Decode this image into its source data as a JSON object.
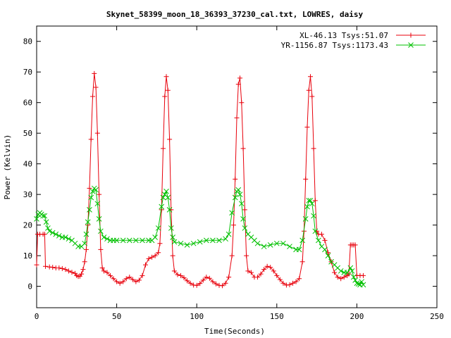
{
  "chart_data": {
    "type": "line",
    "title": "Skynet_58399_moon_18_36393_37230_cal.txt, LOWRES, daisy",
    "xlabel": "Time(Seconds)",
    "ylabel": "Power (Kelvin)",
    "xlim": [
      0,
      250
    ],
    "ylim": [
      -7,
      85
    ],
    "x_ticks": [
      0,
      50,
      100,
      150,
      200,
      250
    ],
    "y_ticks": [
      0,
      10,
      20,
      30,
      40,
      50,
      60,
      70,
      80
    ],
    "grid": false,
    "legend_position": "top-right",
    "series": [
      {
        "name": "XL-46.13 Tsys:51.07",
        "color": "#e8000b",
        "marker": "plus",
        "points": [
          [
            0,
            7
          ],
          [
            0.6,
            17
          ],
          [
            2,
            17
          ],
          [
            4,
            17
          ],
          [
            5,
            17
          ],
          [
            5.5,
            6.5
          ],
          [
            8,
            6.3
          ],
          [
            10,
            6.2
          ],
          [
            12,
            6
          ],
          [
            14,
            6
          ],
          [
            16,
            5.8
          ],
          [
            18,
            5.5
          ],
          [
            20,
            5
          ],
          [
            22,
            4.6
          ],
          [
            24,
            4.2
          ],
          [
            25,
            3.5
          ],
          [
            26,
            3.2
          ],
          [
            27,
            3.3
          ],
          [
            28,
            4
          ],
          [
            29,
            5.5
          ],
          [
            30,
            8
          ],
          [
            31,
            12
          ],
          [
            32,
            20
          ],
          [
            33,
            32
          ],
          [
            34,
            48
          ],
          [
            35,
            62
          ],
          [
            36,
            69.5
          ],
          [
            37,
            65
          ],
          [
            38,
            50
          ],
          [
            39,
            30
          ],
          [
            40,
            12
          ],
          [
            41,
            6
          ],
          [
            42,
            5
          ],
          [
            44,
            4.5
          ],
          [
            46,
            3.5
          ],
          [
            48,
            2.5
          ],
          [
            50,
            1.5
          ],
          [
            52,
            1
          ],
          [
            54,
            1.5
          ],
          [
            56,
            2.5
          ],
          [
            58,
            3
          ],
          [
            60,
            2.2
          ],
          [
            62,
            1.5
          ],
          [
            64,
            2
          ],
          [
            66,
            3.5
          ],
          [
            68,
            7
          ],
          [
            70,
            9
          ],
          [
            72,
            9.5
          ],
          [
            74,
            10
          ],
          [
            76,
            11
          ],
          [
            77,
            14
          ],
          [
            78,
            25
          ],
          [
            79,
            45
          ],
          [
            80,
            62
          ],
          [
            81,
            68.5
          ],
          [
            82,
            64
          ],
          [
            83,
            48
          ],
          [
            84,
            25
          ],
          [
            85,
            10
          ],
          [
            86,
            5
          ],
          [
            88,
            3.8
          ],
          [
            90,
            3.5
          ],
          [
            92,
            2.8
          ],
          [
            94,
            1.8
          ],
          [
            96,
            1
          ],
          [
            98,
            0.4
          ],
          [
            100,
            0.3
          ],
          [
            102,
            0.9
          ],
          [
            104,
            2
          ],
          [
            106,
            3
          ],
          [
            108,
            2.6
          ],
          [
            110,
            1.5
          ],
          [
            112,
            0.8
          ],
          [
            114,
            0.3
          ],
          [
            116,
            0.2
          ],
          [
            118,
            1
          ],
          [
            120,
            3
          ],
          [
            122,
            10
          ],
          [
            123,
            20
          ],
          [
            124,
            35
          ],
          [
            125,
            55
          ],
          [
            126,
            66
          ],
          [
            127,
            68
          ],
          [
            128,
            60
          ],
          [
            129,
            45
          ],
          [
            130,
            25
          ],
          [
            131,
            10
          ],
          [
            132,
            5
          ],
          [
            134,
            4.5
          ],
          [
            136,
            3
          ],
          [
            138,
            3
          ],
          [
            140,
            4
          ],
          [
            142,
            5.5
          ],
          [
            144,
            6.5
          ],
          [
            146,
            6.2
          ],
          [
            148,
            5
          ],
          [
            150,
            3.5
          ],
          [
            152,
            2.2
          ],
          [
            154,
            1
          ],
          [
            156,
            0.4
          ],
          [
            158,
            0.5
          ],
          [
            160,
            1
          ],
          [
            162,
            1.5
          ],
          [
            164,
            2.5
          ],
          [
            166,
            8
          ],
          [
            167,
            18
          ],
          [
            168,
            35
          ],
          [
            169,
            52
          ],
          [
            170,
            64
          ],
          [
            171,
            68.5
          ],
          [
            172,
            62
          ],
          [
            173,
            45
          ],
          [
            174,
            28
          ],
          [
            175,
            18
          ],
          [
            176,
            17
          ],
          [
            178,
            17
          ],
          [
            180,
            15
          ],
          [
            182,
            11
          ],
          [
            184,
            8
          ],
          [
            186,
            4.5
          ],
          [
            188,
            3
          ],
          [
            190,
            2.5
          ],
          [
            192,
            3
          ],
          [
            194,
            3.5
          ],
          [
            195,
            4
          ],
          [
            196,
            13.5
          ],
          [
            197,
            13.5
          ],
          [
            198,
            13.5
          ],
          [
            199,
            13.5
          ],
          [
            200,
            3.5
          ],
          [
            202,
            3.5
          ],
          [
            204,
            3.5
          ]
        ]
      },
      {
        "name": "YR-1156.87 Tsys:1173.43",
        "color": "#00c000",
        "marker": "cross",
        "points": [
          [
            0,
            22
          ],
          [
            1,
            23.5
          ],
          [
            2,
            24
          ],
          [
            3,
            23.5
          ],
          [
            4,
            23
          ],
          [
            5,
            23
          ],
          [
            6,
            21
          ],
          [
            7,
            19
          ],
          [
            8,
            18
          ],
          [
            10,
            17.5
          ],
          [
            12,
            17
          ],
          [
            14,
            16.5
          ],
          [
            16,
            16
          ],
          [
            18,
            16
          ],
          [
            20,
            15.5
          ],
          [
            22,
            15
          ],
          [
            24,
            14
          ],
          [
            26,
            13
          ],
          [
            28,
            13
          ],
          [
            30,
            14
          ],
          [
            31,
            17
          ],
          [
            32,
            21
          ],
          [
            33,
            25
          ],
          [
            34,
            29
          ],
          [
            35,
            31
          ],
          [
            36,
            32
          ],
          [
            37,
            31.5
          ],
          [
            38,
            27
          ],
          [
            39,
            22
          ],
          [
            40,
            18
          ],
          [
            42,
            16
          ],
          [
            44,
            15.5
          ],
          [
            46,
            15
          ],
          [
            48,
            15
          ],
          [
            50,
            15
          ],
          [
            54,
            15
          ],
          [
            58,
            15
          ],
          [
            62,
            15
          ],
          [
            66,
            15
          ],
          [
            70,
            15
          ],
          [
            72,
            15
          ],
          [
            74,
            16
          ],
          [
            76,
            19
          ],
          [
            78,
            26
          ],
          [
            79,
            29
          ],
          [
            80,
            30
          ],
          [
            81,
            31
          ],
          [
            82,
            29
          ],
          [
            83,
            25
          ],
          [
            84,
            19
          ],
          [
            85,
            16
          ],
          [
            86,
            14.5
          ],
          [
            90,
            14
          ],
          [
            94,
            13.5
          ],
          [
            98,
            14
          ],
          [
            102,
            14.5
          ],
          [
            106,
            15
          ],
          [
            110,
            15
          ],
          [
            114,
            15
          ],
          [
            118,
            15.5
          ],
          [
            120,
            17
          ],
          [
            122,
            24
          ],
          [
            124,
            29
          ],
          [
            125,
            31
          ],
          [
            126,
            31.5
          ],
          [
            127,
            30
          ],
          [
            128,
            27
          ],
          [
            129,
            22
          ],
          [
            130,
            19
          ],
          [
            132,
            17
          ],
          [
            134,
            16
          ],
          [
            136,
            15
          ],
          [
            138,
            14
          ],
          [
            142,
            13
          ],
          [
            146,
            13.5
          ],
          [
            150,
            14
          ],
          [
            154,
            14
          ],
          [
            158,
            13
          ],
          [
            162,
            12
          ],
          [
            164,
            12
          ],
          [
            166,
            15
          ],
          [
            168,
            22
          ],
          [
            169,
            26
          ],
          [
            170,
            28
          ],
          [
            171,
            28
          ],
          [
            172,
            27
          ],
          [
            173,
            23
          ],
          [
            174,
            18
          ],
          [
            176,
            15
          ],
          [
            178,
            13
          ],
          [
            180,
            12
          ],
          [
            182,
            10
          ],
          [
            184,
            8
          ],
          [
            186,
            7
          ],
          [
            188,
            6
          ],
          [
            190,
            5
          ],
          [
            192,
            4.5
          ],
          [
            194,
            4.5
          ],
          [
            196,
            6
          ],
          [
            197,
            5
          ],
          [
            198,
            3
          ],
          [
            199,
            2
          ],
          [
            200,
            1
          ],
          [
            201,
            0.8
          ],
          [
            202,
            0.5
          ],
          [
            203,
            1.5
          ],
          [
            204,
            0.5
          ]
        ]
      }
    ]
  }
}
